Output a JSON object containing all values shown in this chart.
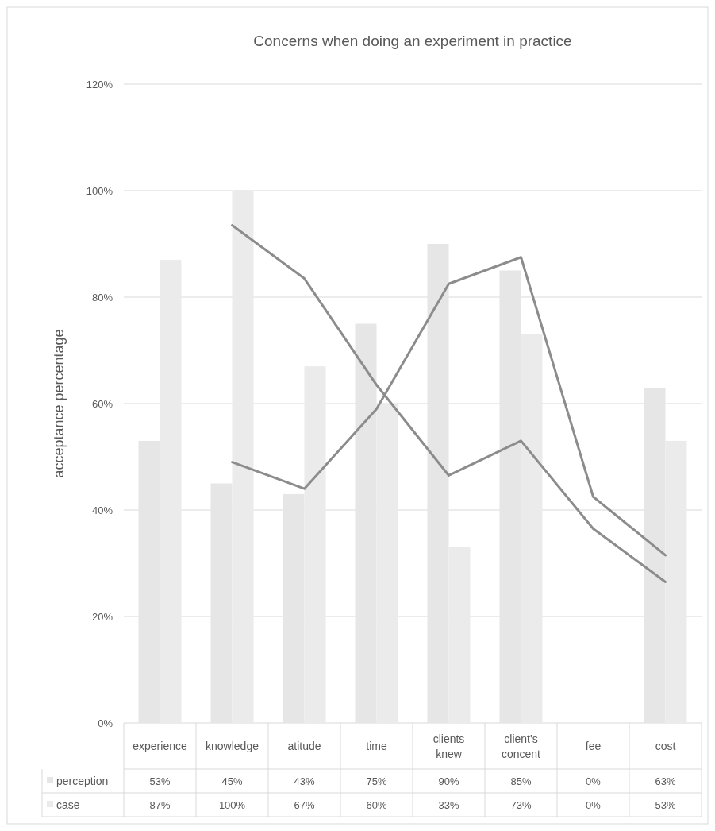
{
  "chart_data": {
    "type": "bar",
    "title": "Concerns when doing an experiment in practice",
    "ylabel": "acceptance percentage",
    "categories": [
      "experience",
      "knowledge",
      "atitude",
      "time",
      "clients knew",
      "client's concent",
      "fee",
      "cost"
    ],
    "series": [
      {
        "name": "perception",
        "color": "#e6e6e6",
        "values": [
          53,
          45,
          43,
          75,
          90,
          85,
          0,
          63
        ],
        "value_labels": [
          "53%",
          "45%",
          "43%",
          "75%",
          "90%",
          "85%",
          "0%",
          "63%"
        ]
      },
      {
        "name": "case",
        "color": "#ebebeb",
        "values": [
          87,
          100,
          67,
          60,
          33,
          73,
          0,
          53
        ],
        "value_labels": [
          "87%",
          "100%",
          "67%",
          "60%",
          "33%",
          "73%",
          "0%",
          "53%"
        ]
      },
      {
        "type": "line",
        "color": "#8c8c8c",
        "values": [
          null,
          49,
          44,
          59,
          82.5,
          87.5,
          42.5,
          31.5
        ]
      },
      {
        "type": "line",
        "color": "#8c8c8c",
        "values": [
          null,
          93.5,
          83.5,
          63.5,
          46.5,
          53,
          36.5,
          26.5
        ]
      }
    ],
    "ylim": [
      0,
      120
    ],
    "yticks": [
      {
        "value": 0,
        "label": "0%"
      },
      {
        "value": 20,
        "label": "20%"
      },
      {
        "value": 40,
        "label": "40%"
      },
      {
        "value": 60,
        "label": "60%"
      },
      {
        "value": 80,
        "label": "80%"
      },
      {
        "value": 100,
        "label": "100%"
      },
      {
        "value": 120,
        "label": "120%"
      }
    ],
    "grid": "y",
    "legend": "bottom",
    "line_style": "solid"
  }
}
